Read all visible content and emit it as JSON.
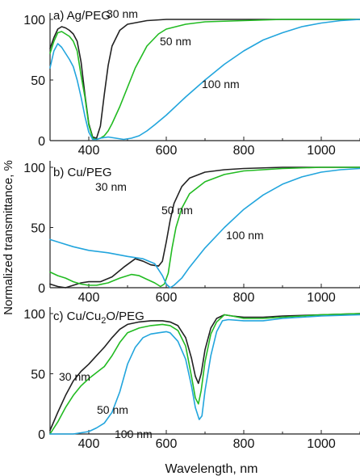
{
  "ylabel": "Normalized transmittance, %",
  "xlabel": "Wavelength, nm",
  "chart_data": [
    {
      "type": "line",
      "panel_label": "a) Ag/PEG",
      "xlim": [
        300,
        1100
      ],
      "ylim": [
        0,
        100
      ],
      "x_ticks": [
        "400",
        "600",
        "800",
        "1000"
      ],
      "y_ticks": [
        "0",
        "50",
        "100"
      ],
      "series": [
        {
          "name": "30 nm",
          "color": "#222222",
          "points": [
            [
              300,
              76
            ],
            [
              310,
              85
            ],
            [
              320,
              92
            ],
            [
              330,
              94
            ],
            [
              340,
              93
            ],
            [
              350,
              91
            ],
            [
              360,
              88
            ],
            [
              370,
              82
            ],
            [
              380,
              65
            ],
            [
              390,
              38
            ],
            [
              400,
              14
            ],
            [
              410,
              3
            ],
            [
              420,
              2
            ],
            [
              430,
              12
            ],
            [
              440,
              38
            ],
            [
              450,
              62
            ],
            [
              460,
              78
            ],
            [
              480,
              91
            ],
            [
              500,
              96
            ],
            [
              550,
              99
            ],
            [
              600,
              100
            ],
            [
              700,
              100
            ],
            [
              800,
              100
            ],
            [
              900,
              100
            ],
            [
              1000,
              100
            ],
            [
              1100,
              100
            ]
          ]
        },
        {
          "name": "50 nm",
          "color": "#22bb22",
          "points": [
            [
              300,
              72
            ],
            [
              310,
              82
            ],
            [
              320,
              89
            ],
            [
              330,
              90
            ],
            [
              340,
              88
            ],
            [
              350,
              86
            ],
            [
              360,
              82
            ],
            [
              370,
              74
            ],
            [
              380,
              54
            ],
            [
              390,
              36
            ],
            [
              400,
              13
            ],
            [
              410,
              2
            ],
            [
              420,
              1
            ],
            [
              430,
              2
            ],
            [
              440,
              4
            ],
            [
              450,
              8
            ],
            [
              460,
              14
            ],
            [
              480,
              28
            ],
            [
              500,
              44
            ],
            [
              520,
              60
            ],
            [
              550,
              78
            ],
            [
              580,
              88
            ],
            [
              600,
              92
            ],
            [
              650,
              96
            ],
            [
              700,
              98
            ],
            [
              800,
              99
            ],
            [
              900,
              100
            ],
            [
              1000,
              100
            ],
            [
              1100,
              100
            ]
          ]
        },
        {
          "name": "100 nm",
          "color": "#22a5dd",
          "points": [
            [
              300,
              60
            ],
            [
              310,
              74
            ],
            [
              320,
              80
            ],
            [
              330,
              77
            ],
            [
              340,
              72
            ],
            [
              350,
              67
            ],
            [
              360,
              61
            ],
            [
              370,
              50
            ],
            [
              380,
              36
            ],
            [
              390,
              20
            ],
            [
              400,
              7
            ],
            [
              410,
              1
            ],
            [
              420,
              1
            ],
            [
              430,
              2
            ],
            [
              450,
              3
            ],
            [
              470,
              2
            ],
            [
              490,
              1
            ],
            [
              510,
              2
            ],
            [
              530,
              4
            ],
            [
              550,
              8
            ],
            [
              570,
              13
            ],
            [
              600,
              21
            ],
            [
              650,
              36
            ],
            [
              700,
              50
            ],
            [
              750,
              63
            ],
            [
              800,
              74
            ],
            [
              850,
              83
            ],
            [
              900,
              89
            ],
            [
              950,
              94
            ],
            [
              1000,
              97
            ],
            [
              1050,
              99
            ],
            [
              1100,
              100
            ]
          ]
        }
      ],
      "annotations": [
        "30 nm",
        "50 nm",
        "100 nm"
      ]
    },
    {
      "type": "line",
      "panel_label": "b) Cu/PEG",
      "xlim": [
        300,
        1100
      ],
      "ylim": [
        0,
        100
      ],
      "x_ticks": [
        "400",
        "600",
        "800",
        "1000"
      ],
      "y_ticks": [
        "0",
        "50",
        "100"
      ],
      "series": [
        {
          "name": "30 nm",
          "color": "#222222",
          "points": [
            [
              300,
              3
            ],
            [
              320,
              1
            ],
            [
              340,
              0
            ],
            [
              360,
              2
            ],
            [
              380,
              4
            ],
            [
              400,
              5
            ],
            [
              430,
              5
            ],
            [
              460,
              9
            ],
            [
              490,
              17
            ],
            [
              520,
              24
            ],
            [
              540,
              22
            ],
            [
              560,
              19
            ],
            [
              580,
              18
            ],
            [
              590,
              22
            ],
            [
              600,
              38
            ],
            [
              610,
              56
            ],
            [
              620,
              70
            ],
            [
              640,
              84
            ],
            [
              660,
              91
            ],
            [
              700,
              96
            ],
            [
              750,
              98
            ],
            [
              800,
              99
            ],
            [
              900,
              100
            ],
            [
              1000,
              100
            ],
            [
              1100,
              100
            ]
          ]
        },
        {
          "name": "50 nm",
          "color": "#22bb22",
          "points": [
            [
              300,
              13
            ],
            [
              320,
              10
            ],
            [
              340,
              8
            ],
            [
              360,
              5
            ],
            [
              380,
              3
            ],
            [
              400,
              2
            ],
            [
              420,
              2
            ],
            [
              450,
              4
            ],
            [
              480,
              8
            ],
            [
              510,
              11
            ],
            [
              530,
              10
            ],
            [
              550,
              7
            ],
            [
              570,
              4
            ],
            [
              585,
              1
            ],
            [
              595,
              3
            ],
            [
              605,
              12
            ],
            [
              615,
              33
            ],
            [
              625,
              50
            ],
            [
              640,
              66
            ],
            [
              660,
              78
            ],
            [
              700,
              88
            ],
            [
              750,
              94
            ],
            [
              800,
              97
            ],
            [
              900,
              99
            ],
            [
              1000,
              100
            ],
            [
              1100,
              100
            ]
          ]
        },
        {
          "name": "100 nm",
          "color": "#22a5dd",
          "points": [
            [
              300,
              40
            ],
            [
              330,
              37
            ],
            [
              360,
              34
            ],
            [
              400,
              31
            ],
            [
              450,
              29
            ],
            [
              500,
              26
            ],
            [
              540,
              24
            ],
            [
              570,
              20
            ],
            [
              590,
              10
            ],
            [
              600,
              3
            ],
            [
              610,
              0
            ],
            [
              620,
              2
            ],
            [
              640,
              8
            ],
            [
              660,
              17
            ],
            [
              700,
              33
            ],
            [
              750,
              50
            ],
            [
              800,
              65
            ],
            [
              850,
              77
            ],
            [
              900,
              86
            ],
            [
              950,
              92
            ],
            [
              1000,
              96
            ],
            [
              1050,
              98
            ],
            [
              1100,
              99
            ]
          ]
        }
      ],
      "annotations": [
        "30 nm",
        "50 nm",
        "100 nm"
      ]
    },
    {
      "type": "line",
      "panel_label_parts": [
        "c) Cu/Cu",
        "2",
        "O/PEG"
      ],
      "xlim": [
        300,
        1100
      ],
      "ylim": [
        0,
        100
      ],
      "x_ticks": [
        "400",
        "600",
        "800",
        "1000"
      ],
      "y_ticks": [
        "0",
        "50",
        "100"
      ],
      "series": [
        {
          "name": "30 nm",
          "color": "#222222",
          "points": [
            [
              300,
              3
            ],
            [
              320,
              18
            ],
            [
              340,
              32
            ],
            [
              360,
              44
            ],
            [
              380,
              52
            ],
            [
              400,
              58
            ],
            [
              420,
              65
            ],
            [
              440,
              72
            ],
            [
              460,
              80
            ],
            [
              480,
              87
            ],
            [
              500,
              91
            ],
            [
              530,
              93
            ],
            [
              560,
              94
            ],
            [
              590,
              94
            ],
            [
              610,
              93
            ],
            [
              630,
              90
            ],
            [
              650,
              80
            ],
            [
              665,
              63
            ],
            [
              675,
              48
            ],
            [
              683,
              42
            ],
            [
              690,
              50
            ],
            [
              700,
              70
            ],
            [
              715,
              88
            ],
            [
              730,
              96
            ],
            [
              750,
              99
            ],
            [
              770,
              98
            ],
            [
              800,
              97
            ],
            [
              850,
              97
            ],
            [
              900,
              98
            ],
            [
              1000,
              99
            ],
            [
              1100,
              100
            ]
          ]
        },
        {
          "name": "50 nm",
          "color": "#22bb22",
          "points": [
            [
              300,
              0
            ],
            [
              320,
              10
            ],
            [
              340,
              22
            ],
            [
              360,
              32
            ],
            [
              380,
              40
            ],
            [
              400,
              46
            ],
            [
              420,
              51
            ],
            [
              440,
              56
            ],
            [
              460,
              65
            ],
            [
              480,
              76
            ],
            [
              500,
              84
            ],
            [
              530,
              88
            ],
            [
              560,
              90
            ],
            [
              590,
              91
            ],
            [
              610,
              90
            ],
            [
              630,
              86
            ],
            [
              650,
              73
            ],
            [
              665,
              48
            ],
            [
              675,
              30
            ],
            [
              683,
              25
            ],
            [
              690,
              36
            ],
            [
              700,
              60
            ],
            [
              715,
              83
            ],
            [
              730,
              93
            ],
            [
              750,
              99
            ],
            [
              770,
              98
            ],
            [
              800,
              96
            ],
            [
              850,
              96
            ],
            [
              900,
              97
            ],
            [
              1000,
              99
            ],
            [
              1100,
              100
            ]
          ]
        },
        {
          "name": "100 nm",
          "color": "#22a5dd",
          "points": [
            [
              300,
              0
            ],
            [
              360,
              0
            ],
            [
              400,
              2
            ],
            [
              420,
              5
            ],
            [
              440,
              9
            ],
            [
              460,
              18
            ],
            [
              480,
              35
            ],
            [
              500,
              58
            ],
            [
              520,
              72
            ],
            [
              540,
              80
            ],
            [
              560,
              83
            ],
            [
              580,
              84
            ],
            [
              600,
              85
            ],
            [
              610,
              84
            ],
            [
              630,
              77
            ],
            [
              650,
              62
            ],
            [
              665,
              40
            ],
            [
              675,
              22
            ],
            [
              685,
              12
            ],
            [
              692,
              15
            ],
            [
              700,
              36
            ],
            [
              715,
              65
            ],
            [
              730,
              85
            ],
            [
              745,
              94
            ],
            [
              760,
              95
            ],
            [
              800,
              94
            ],
            [
              850,
              94
            ],
            [
              900,
              96
            ],
            [
              1000,
              98
            ],
            [
              1100,
              99
            ]
          ]
        }
      ],
      "annotations": [
        "30 nm",
        "50 nm",
        "100 nm"
      ]
    }
  ]
}
